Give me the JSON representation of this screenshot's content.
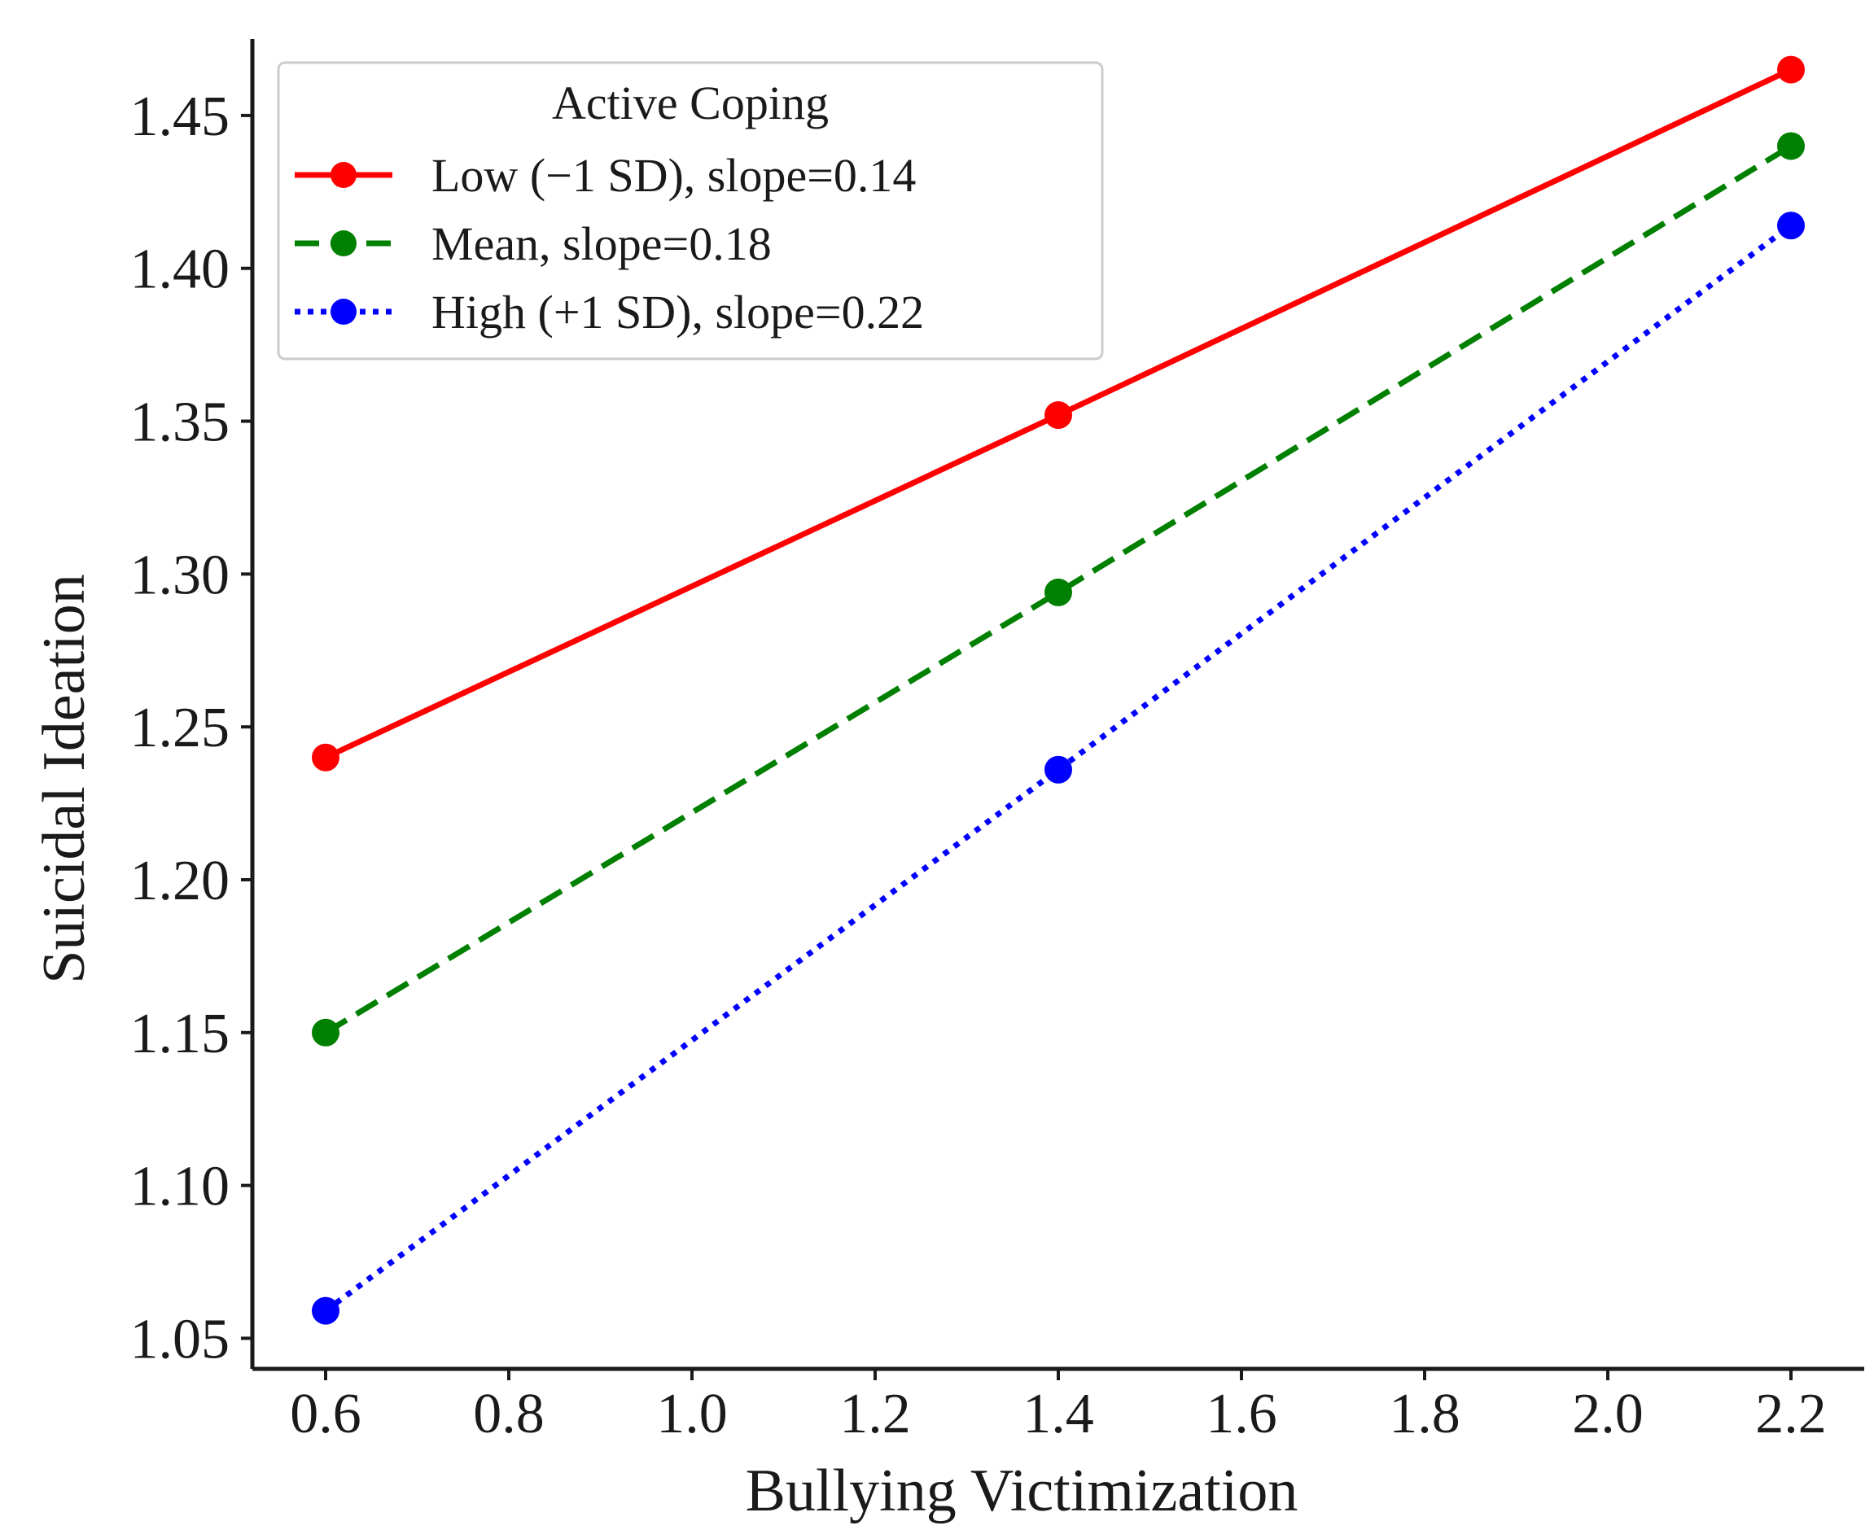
{
  "chart_data": {
    "type": "line",
    "title": "",
    "xlabel": "Bullying Victimization",
    "ylabel": "Suicidal Ideation",
    "x": [
      0.6,
      1.4,
      2.2
    ],
    "xlim": [
      0.52,
      2.28
    ],
    "ylim": [
      1.04,
      1.475
    ],
    "xticks": [
      0.6,
      0.8,
      1.0,
      1.2,
      1.4,
      1.6,
      1.8,
      2.0,
      2.2
    ],
    "xtick_labels": [
      "0.6",
      "0.8",
      "1.0",
      "1.2",
      "1.4",
      "1.6",
      "1.8",
      "2.0",
      "2.2"
    ],
    "yticks": [
      1.05,
      1.1,
      1.15,
      1.2,
      1.25,
      1.3,
      1.35,
      1.4,
      1.45
    ],
    "ytick_labels": [
      "1.05",
      "1.10",
      "1.15",
      "1.20",
      "1.25",
      "1.30",
      "1.35",
      "1.40",
      "1.45"
    ],
    "grid": false,
    "legend": {
      "title": "Active Coping",
      "placement": "top-left"
    },
    "series": [
      {
        "name": "Low (−1 SD), slope=0.14",
        "values": [
          1.24,
          1.352,
          1.465
        ],
        "color": "#ff0000",
        "style": "solid"
      },
      {
        "name": "Mean, slope=0.18",
        "values": [
          1.15,
          1.294,
          1.44
        ],
        "color": "#008000",
        "style": "dashed"
      },
      {
        "name": "High (+1 SD), slope=0.22",
        "values": [
          1.059,
          1.236,
          1.414
        ],
        "color": "#0000ff",
        "style": "dotted"
      }
    ]
  }
}
